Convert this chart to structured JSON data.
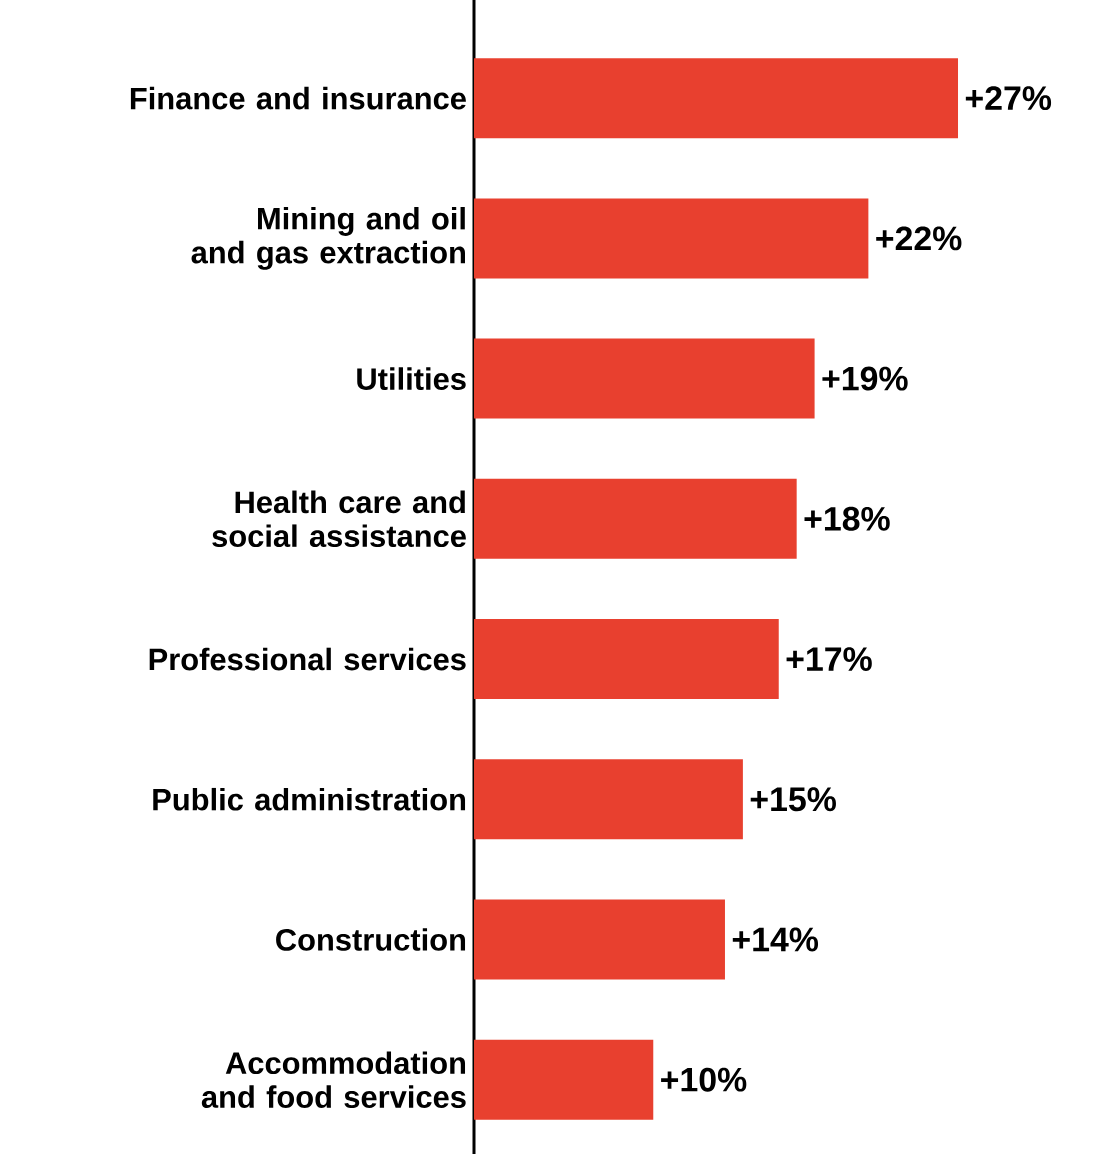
{
  "chart_data": {
    "type": "bar",
    "orientation": "horizontal",
    "categories": [
      "Finance and insurance",
      "Mining and oil and gas extraction",
      "Utilities",
      "Health care and social assistance",
      "Professional services",
      "Public administration",
      "Construction",
      "Accommodation and food services"
    ],
    "values": [
      27,
      22,
      19,
      18,
      17,
      15,
      14,
      10
    ],
    "value_labels": [
      "+27%",
      "+22%",
      "+19%",
      "+18%",
      "+17%",
      "+15%",
      "+14%",
      "+10%"
    ],
    "color": "#e8402f"
  }
}
